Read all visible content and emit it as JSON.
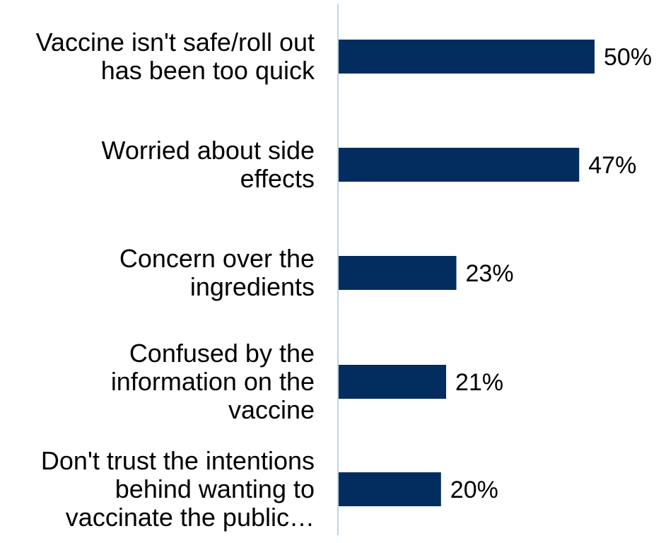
{
  "chart_data": {
    "type": "bar",
    "orientation": "horizontal",
    "categories": [
      [
        "Vaccine isn't safe/roll out",
        "has been too quick"
      ],
      [
        "Worried about side",
        "effects"
      ],
      [
        "Concern over the",
        "ingredients"
      ],
      [
        "Confused by the",
        "information on the",
        "vaccine"
      ],
      [
        "Don't trust the intentions",
        "behind wanting to",
        "vaccinate the public…"
      ]
    ],
    "values": [
      50,
      47,
      23,
      21,
      20
    ],
    "value_labels": [
      "50%",
      "47%",
      "23%",
      "21%",
      "20%"
    ],
    "title": "",
    "xlabel": "",
    "ylabel": "",
    "xlim": [
      0,
      55
    ],
    "grid": false,
    "legend": "none",
    "colors": {
      "bar": "#022d5e",
      "axis": "#bcd6ea",
      "text": "#000000"
    }
  }
}
